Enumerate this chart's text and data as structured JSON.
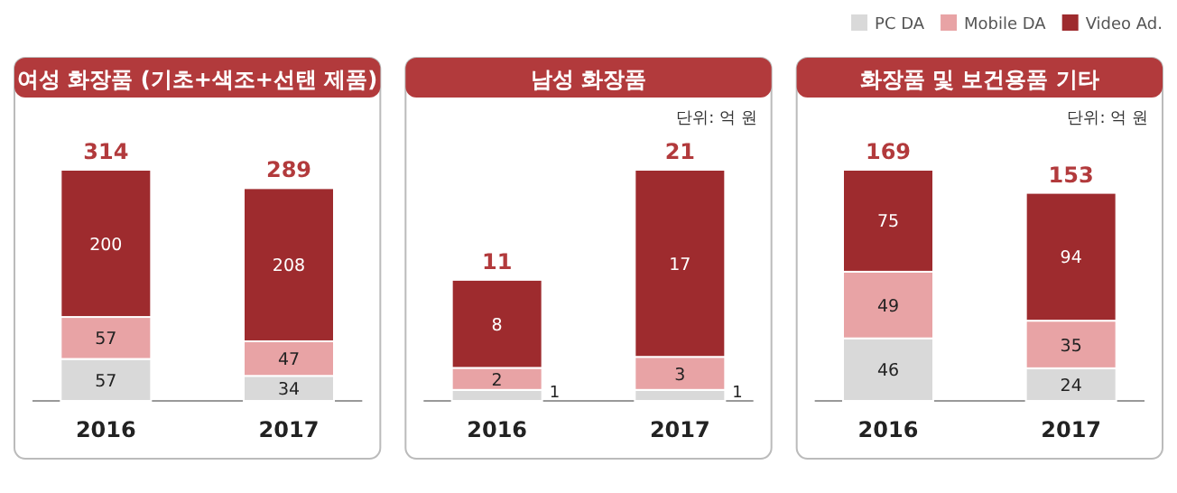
{
  "chart_data": [
    {
      "type": "bar",
      "title": "여성 화장품 (기초+색조+선탠 제품)",
      "stacked": true,
      "data_labels": true,
      "categories": [
        "2016",
        "2017"
      ],
      "totals": [
        "314",
        "289"
      ],
      "series": [
        {
          "color": "#d9d9d9",
          "values": [
            57,
            34
          ]
        },
        {
          "color": "#e8a3a5",
          "values": [
            57,
            47
          ]
        },
        {
          "color": "#9e2b2e",
          "values": [
            200,
            208
          ]
        }
      ]
    },
    {
      "type": "bar",
      "title": "남성 화장품",
      "subtitle": "단위: 억 원",
      "stacked": true,
      "data_labels": true,
      "categories": [
        "2016",
        "2017"
      ],
      "totals": [
        "11",
        "21"
      ],
      "series": [
        {
          "color": "#d9d9d9",
          "values": [
            1,
            1
          ]
        },
        {
          "color": "#e8a3a5",
          "values": [
            2,
            3
          ]
        },
        {
          "color": "#9e2b2e",
          "values": [
            8,
            17
          ]
        }
      ]
    },
    {
      "type": "bar",
      "title": "화장품 및 보건용품 기타",
      "subtitle": "단위: 억 원",
      "stacked": true,
      "data_labels": true,
      "legend": "top right",
      "categories": [
        "2016",
        "2017"
      ],
      "totals": [
        "169",
        "153"
      ],
      "series": [
        {
          "name": "PC DA",
          "color": "#d9d9d9",
          "values": [
            46,
            24
          ]
        },
        {
          "name": "Mobile DA",
          "color": "#e8a3a5",
          "values": [
            49,
            35
          ]
        },
        {
          "name": "Video Ad.",
          "color": "#9e2b2e",
          "values": [
            75,
            94
          ]
        }
      ]
    }
  ]
}
